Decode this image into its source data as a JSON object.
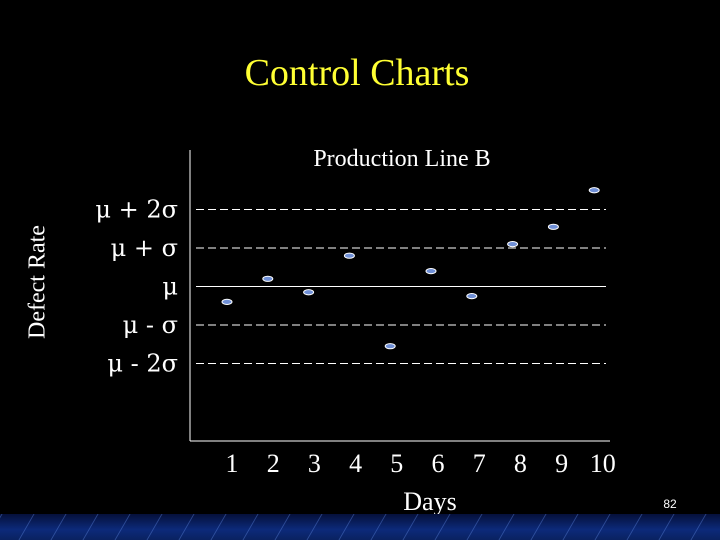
{
  "slide": {
    "title": "Control Charts",
    "page_number": "82"
  },
  "colors": {
    "background": "#000000",
    "title": "#ffff33",
    "text": "#ffffff",
    "point_fill": "#6f8fd6",
    "point_stroke": "#ffffff",
    "footer": "#0c2a7a"
  },
  "chart_data": {
    "type": "scatter",
    "title": "Production Line B",
    "xlabel": "Days",
    "ylabel": "Defect Rate",
    "x": [
      1,
      2,
      3,
      4,
      5,
      6,
      7,
      8,
      9,
      10
    ],
    "y": [
      -0.4,
      0.2,
      -0.15,
      0.8,
      -1.55,
      0.4,
      -0.25,
      1.1,
      1.55,
      2.5
    ],
    "x_tick_labels": [
      "1",
      "2",
      "3",
      "4",
      "5",
      "6",
      "7",
      "8",
      "9",
      "10"
    ],
    "control_lines": [
      {
        "label": "μ + 2σ",
        "value": 2,
        "style": "dashed"
      },
      {
        "label": "μ + σ",
        "value": 1,
        "style": "dashed"
      },
      {
        "label": "μ",
        "value": 0,
        "style": "solid"
      },
      {
        "label": "μ - σ",
        "value": -1,
        "style": "dashed"
      },
      {
        "label": "μ - 2σ",
        "value": -2,
        "style": "dashed"
      }
    ],
    "ylim": [
      -5,
      3.5
    ],
    "xlim": [
      0.5,
      10.5
    ],
    "grid": false,
    "legend": "none"
  }
}
